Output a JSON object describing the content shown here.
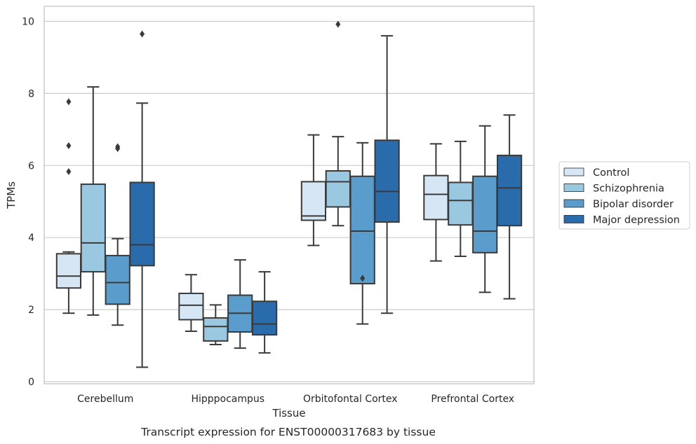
{
  "chart_data": {
    "type": "box",
    "xlabel": "Tissue",
    "ylabel": "TPMs",
    "caption": "Transcript expression for ENST00000317683 by tissue",
    "ylim": [
      -0.1,
      10.4
    ],
    "yticks": [
      0,
      2,
      4,
      6,
      8,
      10
    ],
    "grid": true,
    "legend_position": "right",
    "categories": [
      "Cerebellum",
      "Hipppocampus",
      "Orbitofontal Cortex",
      "Prefrontal Cortex"
    ],
    "series": [
      {
        "name": "Control",
        "color": "#d6e6f4",
        "boxes": [
          {
            "whislo": 1.9,
            "q1": 2.6,
            "med": 2.93,
            "q3": 3.55,
            "whishi": 3.6,
            "fliers": [
              5.83,
              6.55,
              7.77
            ]
          },
          {
            "whislo": 1.4,
            "q1": 1.72,
            "med": 2.12,
            "q3": 2.45,
            "whishi": 2.97,
            "fliers": []
          },
          {
            "whislo": 3.78,
            "q1": 4.48,
            "med": 4.6,
            "q3": 5.55,
            "whishi": 6.85,
            "fliers": []
          },
          {
            "whislo": 3.35,
            "q1": 4.5,
            "med": 5.2,
            "q3": 5.72,
            "whishi": 6.6,
            "fliers": []
          }
        ]
      },
      {
        "name": "Schizophrenia",
        "color": "#9ac8e0",
        "boxes": [
          {
            "whislo": 1.85,
            "q1": 3.05,
            "med": 3.85,
            "q3": 5.48,
            "whishi": 8.18,
            "fliers": []
          },
          {
            "whislo": 1.03,
            "q1": 1.13,
            "med": 1.53,
            "q3": 1.77,
            "whishi": 2.13,
            "fliers": []
          },
          {
            "whislo": 4.33,
            "q1": 4.85,
            "med": 5.55,
            "q3": 5.85,
            "whishi": 6.8,
            "fliers": [
              9.92
            ]
          },
          {
            "whislo": 3.48,
            "q1": 4.35,
            "med": 5.03,
            "q3": 5.53,
            "whishi": 6.67,
            "fliers": []
          }
        ]
      },
      {
        "name": "Bipolar disorder",
        "color": "#5a9ccb",
        "boxes": [
          {
            "whislo": 1.57,
            "q1": 2.15,
            "med": 2.75,
            "q3": 3.5,
            "whishi": 3.97,
            "fliers": [
              6.47,
              6.52
            ]
          },
          {
            "whislo": 0.93,
            "q1": 1.38,
            "med": 1.9,
            "q3": 2.4,
            "whishi": 3.38,
            "fliers": []
          },
          {
            "whislo": 1.6,
            "q1": 2.72,
            "med": 4.18,
            "q3": 5.7,
            "whishi": 6.63,
            "fliers": [
              2.87
            ]
          },
          {
            "whislo": 2.48,
            "q1": 3.58,
            "med": 4.18,
            "q3": 5.7,
            "whishi": 7.1,
            "fliers": []
          }
        ]
      },
      {
        "name": "Major depression",
        "color": "#2a6bab",
        "boxes": [
          {
            "whislo": 0.4,
            "q1": 3.22,
            "med": 3.8,
            "q3": 5.53,
            "whishi": 7.73,
            "fliers": [
              9.65
            ]
          },
          {
            "whislo": 0.8,
            "q1": 1.3,
            "med": 1.6,
            "q3": 2.23,
            "whishi": 3.05,
            "fliers": []
          },
          {
            "whislo": 1.9,
            "q1": 4.43,
            "med": 5.28,
            "q3": 6.7,
            "whishi": 9.6,
            "fliers": []
          },
          {
            "whislo": 2.3,
            "q1": 4.33,
            "med": 5.38,
            "q3": 6.28,
            "whishi": 7.4,
            "fliers": []
          }
        ]
      }
    ]
  }
}
